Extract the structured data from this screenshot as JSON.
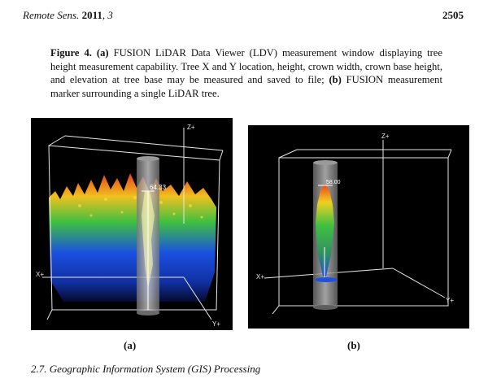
{
  "header": {
    "journal": "Remote Sens.",
    "year": "2011",
    "volume": ", 3",
    "page": "2505"
  },
  "caption": {
    "label": "Figure 4.",
    "a_marker": "(a)",
    "a_text": "FUSION LiDAR Data Viewer (LDV) measurement window displaying tree height measurement capability. Tree X and Y location, height, crown width, crown base height, and elevation at tree base may be measured and saved to file;",
    "b_marker": "(b)",
    "b_text": "FUSION measurement marker surrounding a single LiDAR tree."
  },
  "panel_a": {
    "label": "(a)",
    "axis_z": "Z+",
    "axis_x": "X+",
    "axis_y": "Y+",
    "height_value": "64.33"
  },
  "panel_b": {
    "label": "(b)",
    "axis_z": "Z+",
    "axis_x": "X+",
    "axis_y": "Y+",
    "height_value": "58.00"
  },
  "section_heading": "2.7. Geographic Information System (GIS) Processing",
  "colors": {
    "background": "#000000",
    "wireframe": "#e8e8e8",
    "marker": "#9a9a9a",
    "high": "#e8401c",
    "mid_high": "#f0d020",
    "mid": "#40c040",
    "low": "#1a50e0"
  }
}
